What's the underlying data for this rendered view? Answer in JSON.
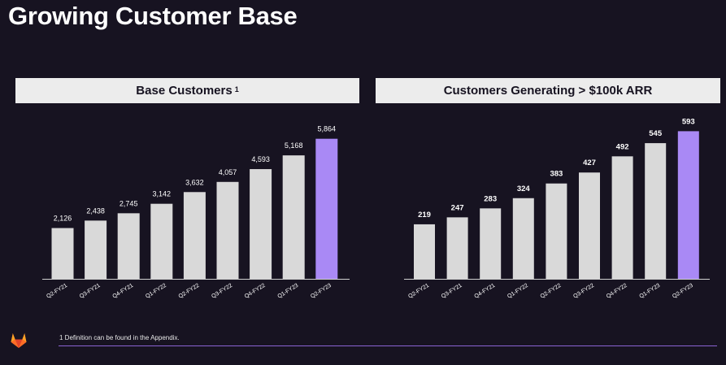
{
  "page": {
    "title": "Growing Customer Base",
    "footnote": "1 Definition can be found in the Appendix."
  },
  "colors": {
    "background": "#171321",
    "bar": "#d9d9d9",
    "bar_highlight": "#a989f5",
    "header_bg": "#ececec",
    "accent_rule": "#8a63d2"
  },
  "chart_data": [
    {
      "type": "bar",
      "title": "Base Customers",
      "title_superscript": "1",
      "categories": [
        "Q2-FY21",
        "Q3-FY21",
        "Q4-FY21",
        "Q1-FY22",
        "Q2-FY22",
        "Q3-FY22",
        "Q4-FY22",
        "Q1-FY23",
        "Q2-FY23"
      ],
      "values": [
        2126,
        2438,
        2745,
        3142,
        3632,
        4057,
        4593,
        5168,
        5864
      ],
      "value_labels": [
        "2,126",
        "2,438",
        "2,745",
        "3,142",
        "3,632",
        "4,057",
        "4,593",
        "5,168",
        "5,864"
      ],
      "highlight_index": 8,
      "ylim": [
        0,
        6500
      ],
      "grid": false,
      "legend": "none"
    },
    {
      "type": "bar",
      "title": "Customers Generating > $100k ARR",
      "categories": [
        "Q2-FY21",
        "Q3-FY21",
        "Q4-FY21",
        "Q1-FY22",
        "Q2-FY22",
        "Q3-FY22",
        "Q4-FY22",
        "Q1-FY23",
        "Q2-FY23"
      ],
      "values": [
        219,
        247,
        283,
        324,
        383,
        427,
        492,
        545,
        593
      ],
      "value_labels": [
        "219",
        "247",
        "283",
        "324",
        "383",
        "427",
        "492",
        "545",
        "593"
      ],
      "highlight_index": 8,
      "ylim": [
        0,
        640
      ],
      "grid": false,
      "legend": "none"
    }
  ]
}
